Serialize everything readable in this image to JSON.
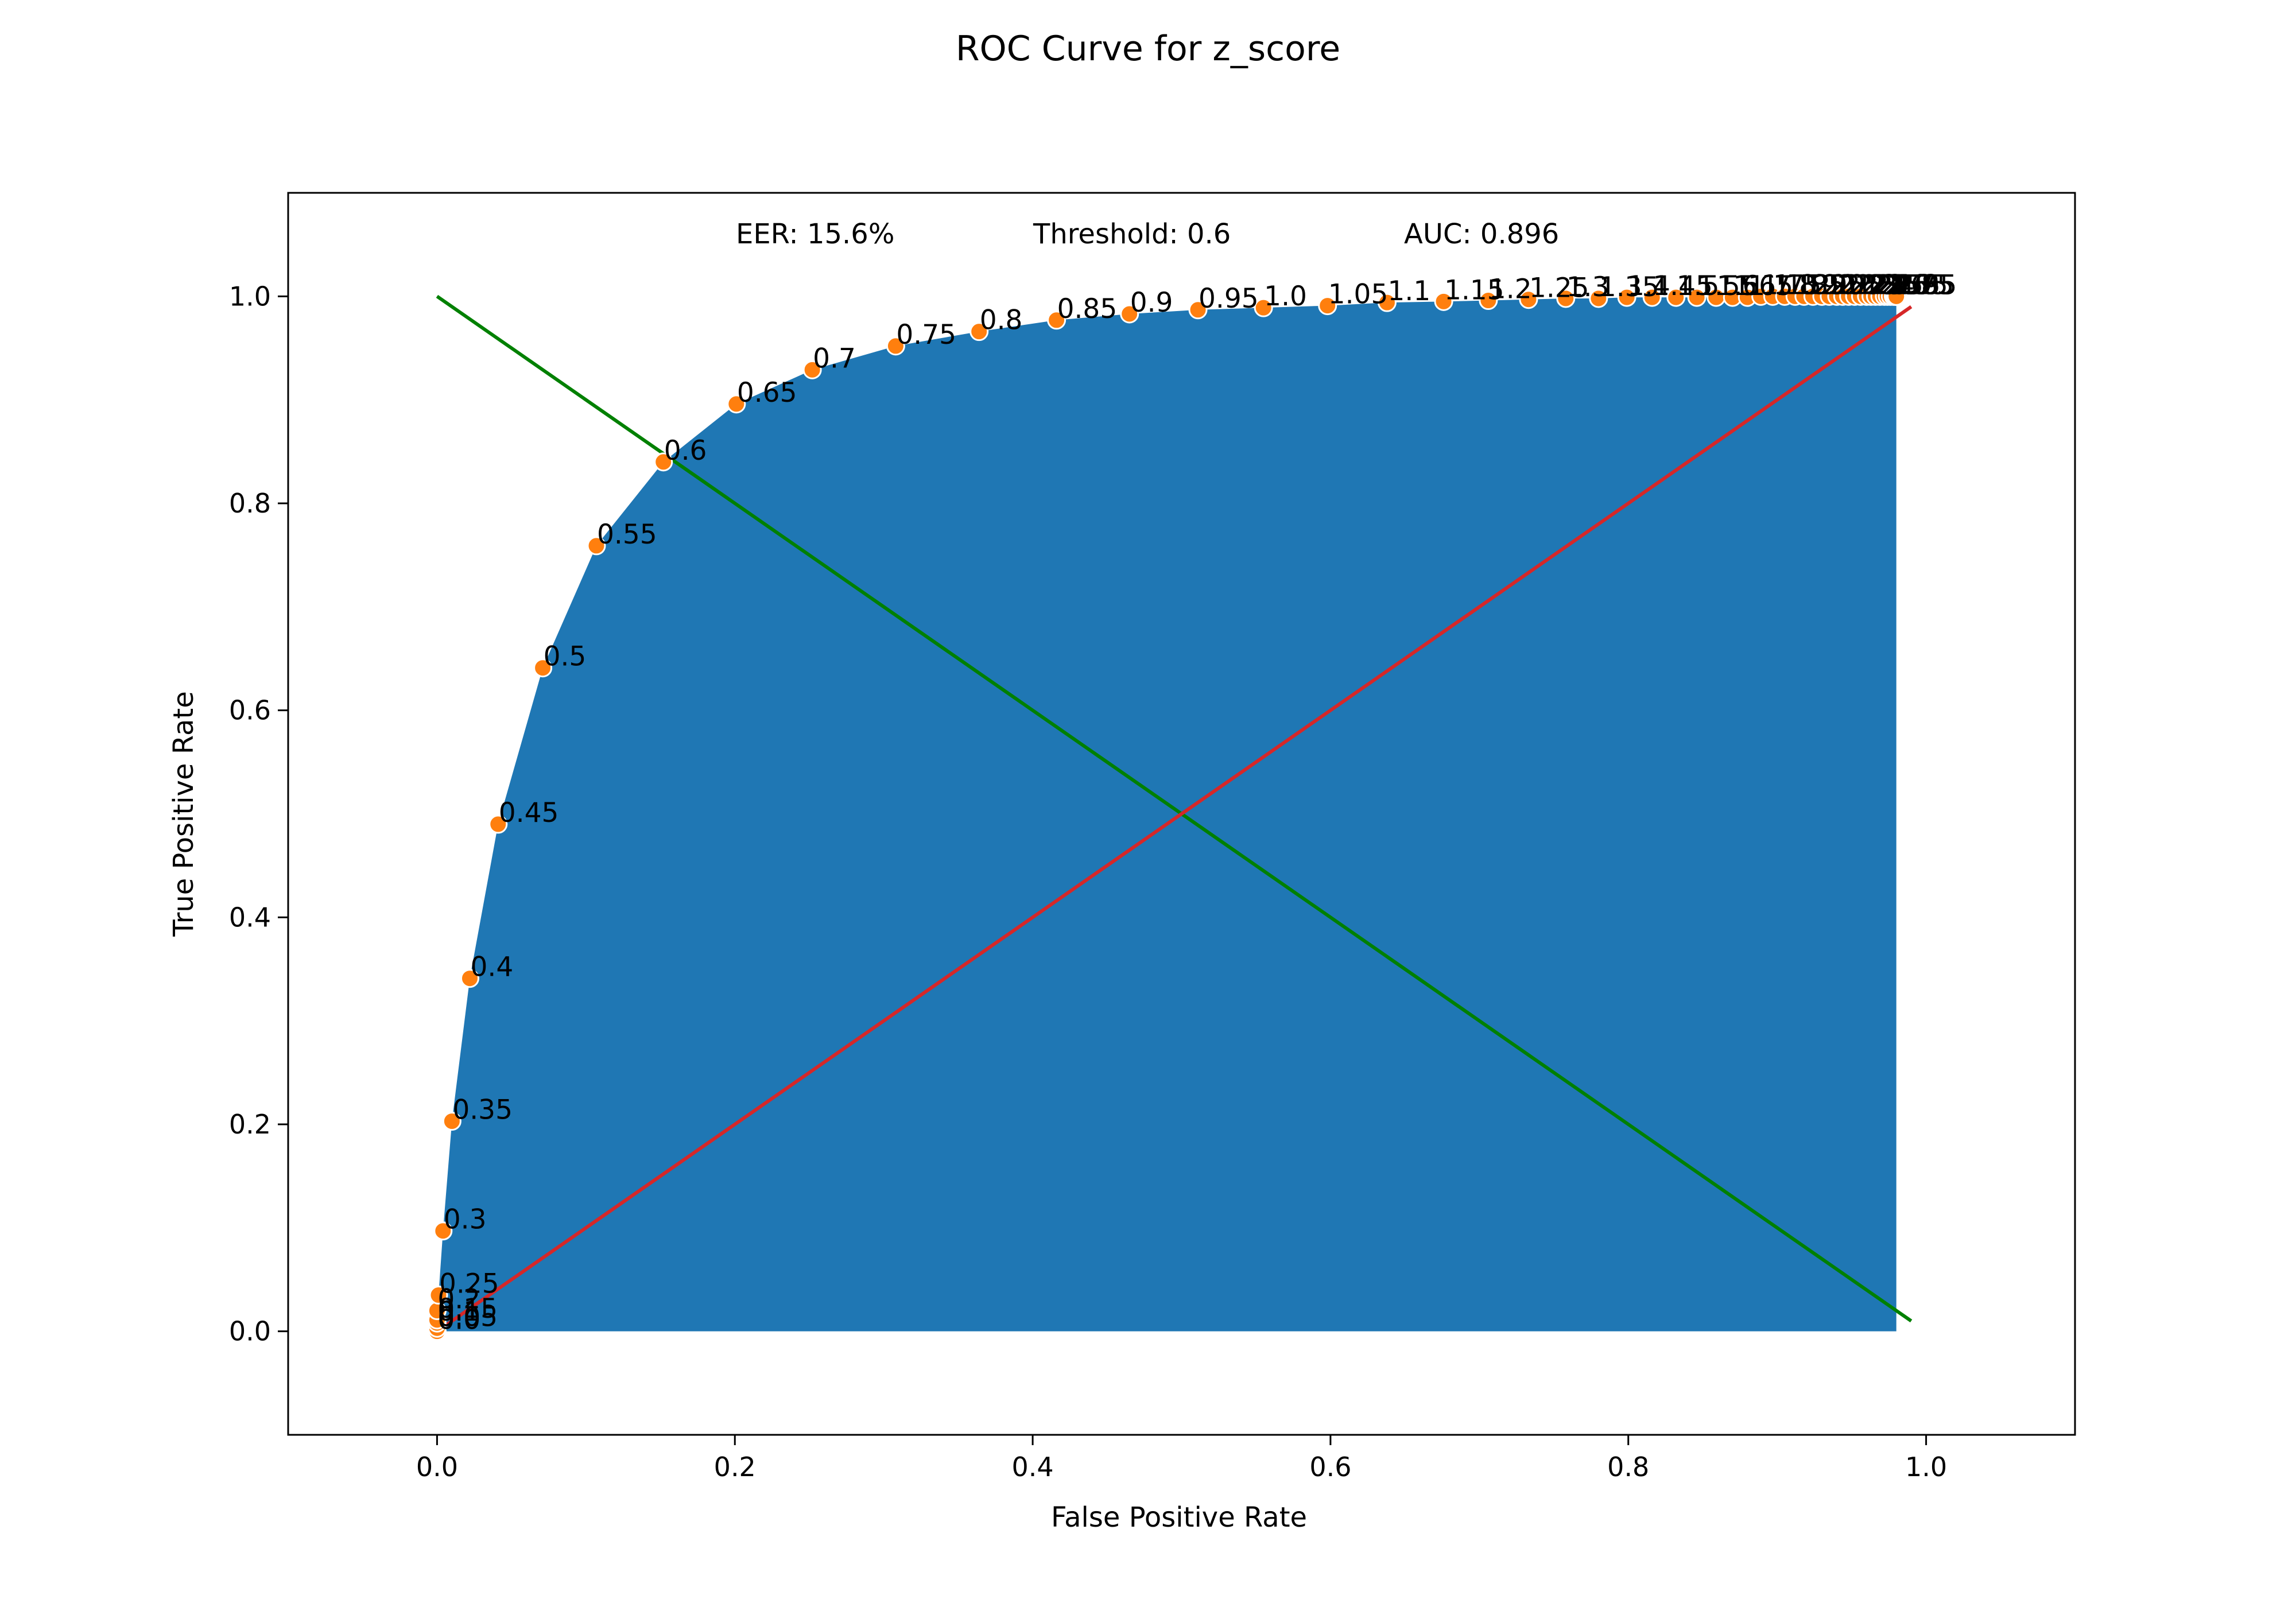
{
  "chart_data": {
    "type": "area",
    "title": "ROC Curve for z_score",
    "xlabel": "False Positive Rate",
    "ylabel": "True Positive Rate",
    "xlim": [
      -0.1,
      1.1
    ],
    "ylim": [
      -0.1,
      1.1
    ],
    "xticks": [
      "0.0",
      "0.2",
      "0.4",
      "0.6",
      "0.8",
      "1.0"
    ],
    "yticks": [
      "0.0",
      "0.2",
      "0.4",
      "0.6",
      "0.8",
      "1.0"
    ],
    "grid": false,
    "annotations": {
      "eer": "EER: 15.6%",
      "threshold": "Threshold: 0.6",
      "auc": "AUC: 0.896"
    },
    "colors": {
      "fill": "#1f77b4",
      "points": "#ff7f0e",
      "eer_line": "#008000",
      "diagonal": "#d62728"
    },
    "lines": [
      {
        "color": "#008000",
        "x": [
          0.0,
          0.99
        ],
        "y": [
          1.0,
          0.01
        ]
      },
      {
        "color": "#d62728",
        "x": [
          0.0,
          0.99
        ],
        "y": [
          0.0,
          0.99
        ]
      }
    ],
    "roc_points": [
      {
        "label": "0.0",
        "x": 0.0,
        "y": 0.0
      },
      {
        "label": "0.05",
        "x": 0.0,
        "y": 0.003
      },
      {
        "label": "0.1",
        "x": 0.0,
        "y": 0.008
      },
      {
        "label": "0.15",
        "x": 0.0,
        "y": 0.011
      },
      {
        "label": "0.2",
        "x": 0.0,
        "y": 0.02
      },
      {
        "label": "0.25",
        "x": 0.001,
        "y": 0.035
      },
      {
        "label": "0.3",
        "x": 0.004,
        "y": 0.097
      },
      {
        "label": "0.35",
        "x": 0.01,
        "y": 0.203
      },
      {
        "label": "0.4",
        "x": 0.022,
        "y": 0.341
      },
      {
        "label": "0.45",
        "x": 0.041,
        "y": 0.49
      },
      {
        "label": "0.5",
        "x": 0.071,
        "y": 0.641
      },
      {
        "label": "0.55",
        "x": 0.107,
        "y": 0.759
      },
      {
        "label": "0.6",
        "x": 0.152,
        "y": 0.84
      },
      {
        "label": "0.65",
        "x": 0.201,
        "y": 0.896
      },
      {
        "label": "0.7",
        "x": 0.252,
        "y": 0.929
      },
      {
        "label": "0.75",
        "x": 0.308,
        "y": 0.952
      },
      {
        "label": "0.8",
        "x": 0.364,
        "y": 0.966
      },
      {
        "label": "0.85",
        "x": 0.416,
        "y": 0.977
      },
      {
        "label": "0.9",
        "x": 0.465,
        "y": 0.983
      },
      {
        "label": "0.95",
        "x": 0.511,
        "y": 0.987
      },
      {
        "label": "1.0",
        "x": 0.555,
        "y": 0.989
      },
      {
        "label": "1.05",
        "x": 0.598,
        "y": 0.991
      },
      {
        "label": "1.1",
        "x": 0.638,
        "y": 0.994
      },
      {
        "label": "1.15",
        "x": 0.676,
        "y": 0.995
      },
      {
        "label": "1.2",
        "x": 0.706,
        "y": 0.996
      },
      {
        "label": "1.25",
        "x": 0.733,
        "y": 0.997
      },
      {
        "label": "1.3",
        "x": 0.758,
        "y": 0.998
      },
      {
        "label": "1.35",
        "x": 0.78,
        "y": 0.998
      },
      {
        "label": "1.4",
        "x": 0.799,
        "y": 0.999
      },
      {
        "label": "1.45",
        "x": 0.816,
        "y": 0.999
      },
      {
        "label": "1.5",
        "x": 0.832,
        "y": 0.999
      },
      {
        "label": "1.55",
        "x": 0.846,
        "y": 0.999
      },
      {
        "label": "1.6",
        "x": 0.859,
        "y": 0.999
      },
      {
        "label": "1.65",
        "x": 0.87,
        "y": 0.999
      },
      {
        "label": "1.7",
        "x": 0.88,
        "y": 0.999
      },
      {
        "label": "1.75",
        "x": 0.889,
        "y": 1.0
      },
      {
        "label": "1.8",
        "x": 0.897,
        "y": 1.0
      },
      {
        "label": "1.85",
        "x": 0.905,
        "y": 1.0
      },
      {
        "label": "1.9",
        "x": 0.912,
        "y": 1.0
      },
      {
        "label": "1.95",
        "x": 0.918,
        "y": 1.0
      },
      {
        "label": "2.0",
        "x": 0.924,
        "y": 1.0
      },
      {
        "label": "2.05",
        "x": 0.93,
        "y": 1.0
      },
      {
        "label": "2.1",
        "x": 0.935,
        "y": 1.0
      },
      {
        "label": "2.15",
        "x": 0.94,
        "y": 1.0
      },
      {
        "label": "2.2",
        "x": 0.944,
        "y": 1.0
      },
      {
        "label": "2.25",
        "x": 0.948,
        "y": 1.0
      },
      {
        "label": "2.3",
        "x": 0.952,
        "y": 1.0
      },
      {
        "label": "2.35",
        "x": 0.956,
        "y": 1.0
      },
      {
        "label": "2.4",
        "x": 0.96,
        "y": 1.0
      },
      {
        "label": "2.45",
        "x": 0.963,
        "y": 1.0
      },
      {
        "label": "2.5",
        "x": 0.966,
        "y": 1.0
      },
      {
        "label": "2.55",
        "x": 0.969,
        "y": 1.0
      },
      {
        "label": "2.6",
        "x": 0.972,
        "y": 1.0
      },
      {
        "label": "2.65",
        "x": 0.974,
        "y": 1.0
      },
      {
        "label": "2.7",
        "x": 0.976,
        "y": 1.0
      },
      {
        "label": "2.75",
        "x": 0.978,
        "y": 1.0
      },
      {
        "label": "2.8",
        "x": 0.979,
        "y": 1.0
      },
      {
        "label": "2.85",
        "x": 0.98,
        "y": 1.0
      },
      {
        "label": "2.9",
        "x": 0.98,
        "y": 1.0
      },
      {
        "label": "2.95",
        "x": 0.98,
        "y": 1.0
      }
    ]
  }
}
